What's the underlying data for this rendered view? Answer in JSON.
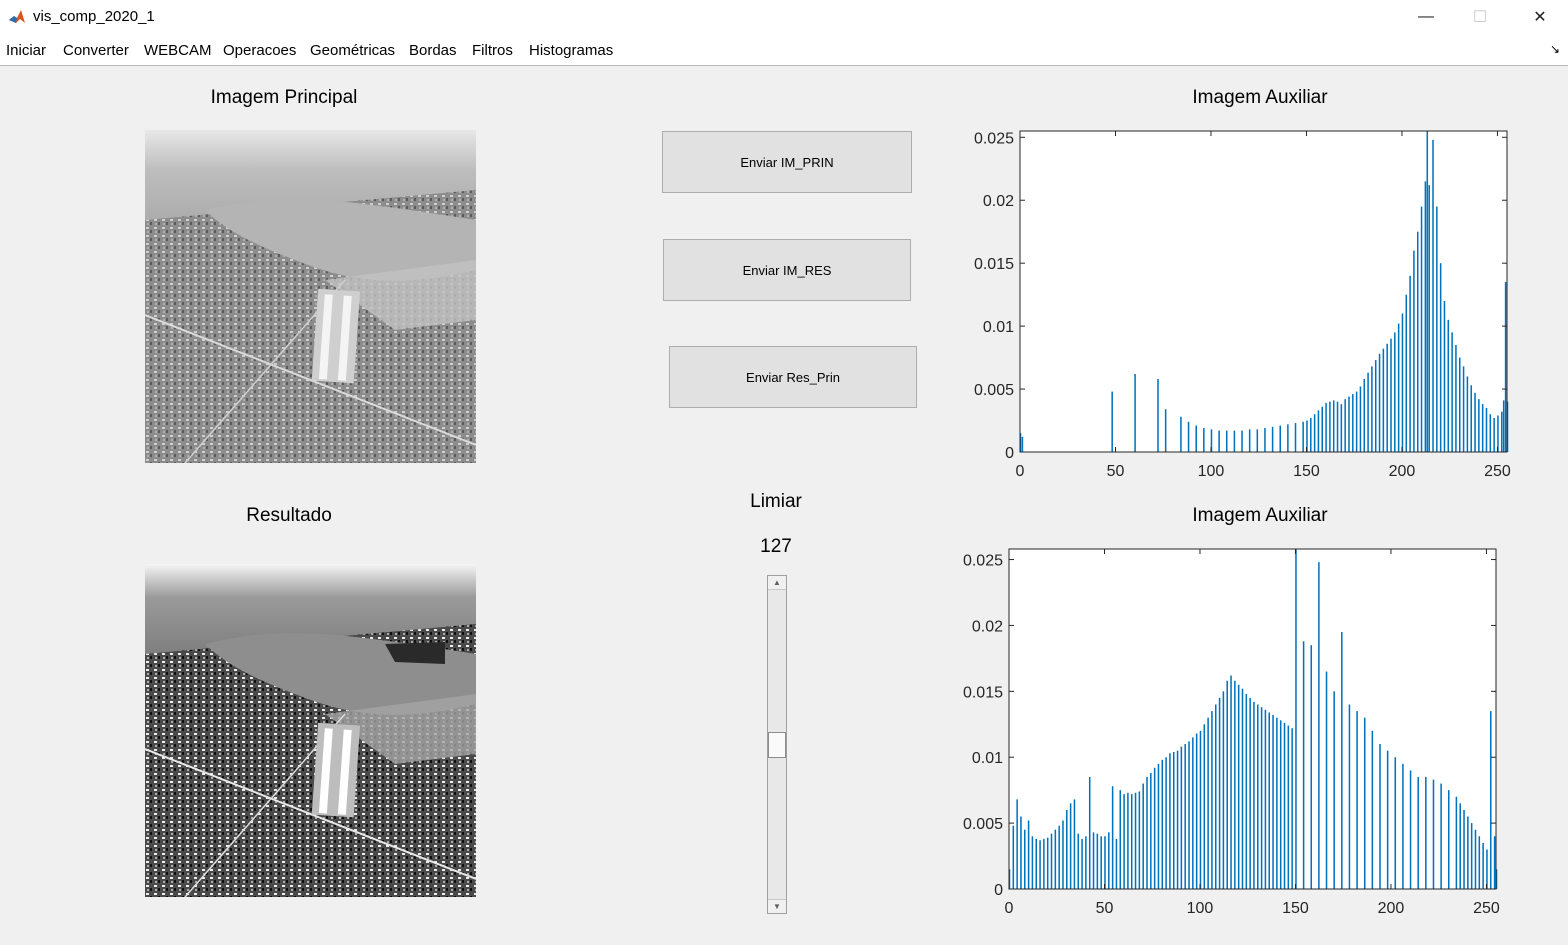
{
  "window": {
    "title": "vis_comp_2020_1",
    "controls": {
      "minimize": "—",
      "maximize": "☐",
      "close": "✕"
    }
  },
  "menu": [
    "Iniciar",
    "Converter",
    "WEBCAM",
    "Operacoes",
    "Geométricas",
    "Bordas",
    "Filtros",
    "Histogramas"
  ],
  "labels": {
    "main_image": "Imagem Principal",
    "result": "Resultado",
    "aux_top": "Imagem Auxiliar",
    "aux_bottom": "Imagem Auxiliar",
    "threshold": "Limiar",
    "threshold_value": "127"
  },
  "buttons": {
    "send_prin": "Enviar IM_PRIN",
    "send_res": "Enviar IM_RES",
    "send_res_prin": "Enviar Res_Prin"
  },
  "slider": {
    "value": 127,
    "min": 0,
    "max": 255
  },
  "colors": {
    "bar": "#0072bd"
  },
  "chart_data": [
    {
      "type": "bar",
      "title": "",
      "xlim": [
        0,
        255
      ],
      "ylim": [
        0,
        0.0255
      ],
      "xticks": [
        0,
        50,
        100,
        150,
        200,
        250
      ],
      "yticks": [
        0,
        0.005,
        0.01,
        0.015,
        0.02,
        0.025
      ],
      "ytick_labels": [
        "0",
        "0.005",
        "0.01",
        "0.015",
        "0.02",
        "0.025"
      ],
      "grid": false,
      "x": [
        0,
        1,
        48,
        60,
        72,
        76,
        84,
        88,
        92,
        96,
        100,
        104,
        108,
        112,
        116,
        120,
        124,
        128,
        132,
        136,
        140,
        144,
        148,
        150,
        152,
        154,
        156,
        158,
        160,
        162,
        164,
        166,
        168,
        170,
        172,
        174,
        176,
        178,
        180,
        182,
        184,
        186,
        188,
        190,
        192,
        194,
        196,
        198,
        200,
        202,
        204,
        206,
        208,
        210,
        212,
        213,
        214,
        216,
        218,
        220,
        222,
        224,
        226,
        228,
        230,
        232,
        234,
        236,
        238,
        240,
        242,
        244,
        246,
        248,
        250,
        252,
        253,
        254,
        255
      ],
      "values": [
        0.0015,
        0.0012,
        0.0048,
        0.0062,
        0.0058,
        0.0034,
        0.0028,
        0.0024,
        0.0021,
        0.0019,
        0.0018,
        0.0017,
        0.0017,
        0.0017,
        0.0017,
        0.0018,
        0.0018,
        0.0019,
        0.002,
        0.0021,
        0.0022,
        0.0023,
        0.0024,
        0.0025,
        0.0027,
        0.003,
        0.0033,
        0.0036,
        0.0039,
        0.004,
        0.0041,
        0.004,
        0.0038,
        0.0042,
        0.0044,
        0.0046,
        0.0048,
        0.0052,
        0.0058,
        0.0063,
        0.0068,
        0.0073,
        0.0078,
        0.0082,
        0.0086,
        0.009,
        0.0095,
        0.0102,
        0.011,
        0.0125,
        0.014,
        0.016,
        0.0175,
        0.0195,
        0.0215,
        0.0258,
        0.0212,
        0.0248,
        0.0195,
        0.015,
        0.012,
        0.0105,
        0.0095,
        0.0085,
        0.0075,
        0.0068,
        0.006,
        0.0053,
        0.0047,
        0.0042,
        0.0038,
        0.0035,
        0.003,
        0.0027,
        0.0029,
        0.0032,
        0.0041,
        0.0135,
        0.004
      ]
    },
    {
      "type": "bar",
      "title": "",
      "xlim": [
        0,
        255
      ],
      "ylim": [
        0,
        0.0258
      ],
      "xticks": [
        0,
        50,
        100,
        150,
        200,
        250
      ],
      "yticks": [
        0,
        0.005,
        0.01,
        0.015,
        0.02,
        0.025
      ],
      "ytick_labels": [
        "0",
        "0.005",
        "0.01",
        "0.015",
        "0.02",
        "0.025"
      ],
      "grid": false,
      "x": [
        0,
        2,
        4,
        6,
        8,
        10,
        12,
        14,
        16,
        18,
        20,
        22,
        24,
        26,
        28,
        30,
        32,
        34,
        36,
        38,
        40,
        42,
        44,
        46,
        48,
        50,
        52,
        54,
        56,
        58,
        60,
        62,
        64,
        66,
        68,
        70,
        72,
        74,
        76,
        78,
        80,
        82,
        84,
        86,
        88,
        90,
        92,
        94,
        96,
        98,
        100,
        102,
        104,
        106,
        108,
        110,
        112,
        114,
        116,
        118,
        120,
        122,
        124,
        126,
        128,
        130,
        132,
        134,
        136,
        138,
        140,
        142,
        144,
        146,
        148,
        150,
        154,
        158,
        162,
        166,
        170,
        174,
        178,
        182,
        186,
        190,
        194,
        198,
        202,
        206,
        210,
        214,
        218,
        222,
        226,
        230,
        234,
        236,
        238,
        240,
        242,
        244,
        246,
        248,
        250,
        252,
        254,
        255
      ],
      "values": [
        0.0015,
        0.0048,
        0.0068,
        0.0055,
        0.0045,
        0.0052,
        0.004,
        0.0038,
        0.0037,
        0.0038,
        0.0039,
        0.0042,
        0.0045,
        0.0048,
        0.0052,
        0.006,
        0.0065,
        0.0068,
        0.0042,
        0.0038,
        0.004,
        0.0085,
        0.0043,
        0.0042,
        0.004,
        0.004,
        0.0043,
        0.0078,
        0.0038,
        0.0075,
        0.0072,
        0.0073,
        0.0072,
        0.0073,
        0.0074,
        0.008,
        0.0085,
        0.0088,
        0.0092,
        0.0095,
        0.0098,
        0.01,
        0.0103,
        0.0104,
        0.0105,
        0.0108,
        0.011,
        0.0112,
        0.0115,
        0.0118,
        0.012,
        0.0125,
        0.013,
        0.0135,
        0.014,
        0.0145,
        0.015,
        0.0158,
        0.0162,
        0.0158,
        0.0155,
        0.0152,
        0.0148,
        0.0145,
        0.0142,
        0.014,
        0.0138,
        0.0136,
        0.0134,
        0.0132,
        0.013,
        0.0128,
        0.0126,
        0.0124,
        0.0122,
        0.0258,
        0.0188,
        0.0185,
        0.0248,
        0.0165,
        0.015,
        0.0195,
        0.014,
        0.0135,
        0.013,
        0.012,
        0.011,
        0.0105,
        0.01,
        0.0095,
        0.009,
        0.0085,
        0.0085,
        0.0083,
        0.008,
        0.0075,
        0.007,
        0.0065,
        0.006,
        0.0055,
        0.005,
        0.0045,
        0.004,
        0.0035,
        0.003,
        0.0135,
        0.004,
        0.0015
      ]
    }
  ]
}
